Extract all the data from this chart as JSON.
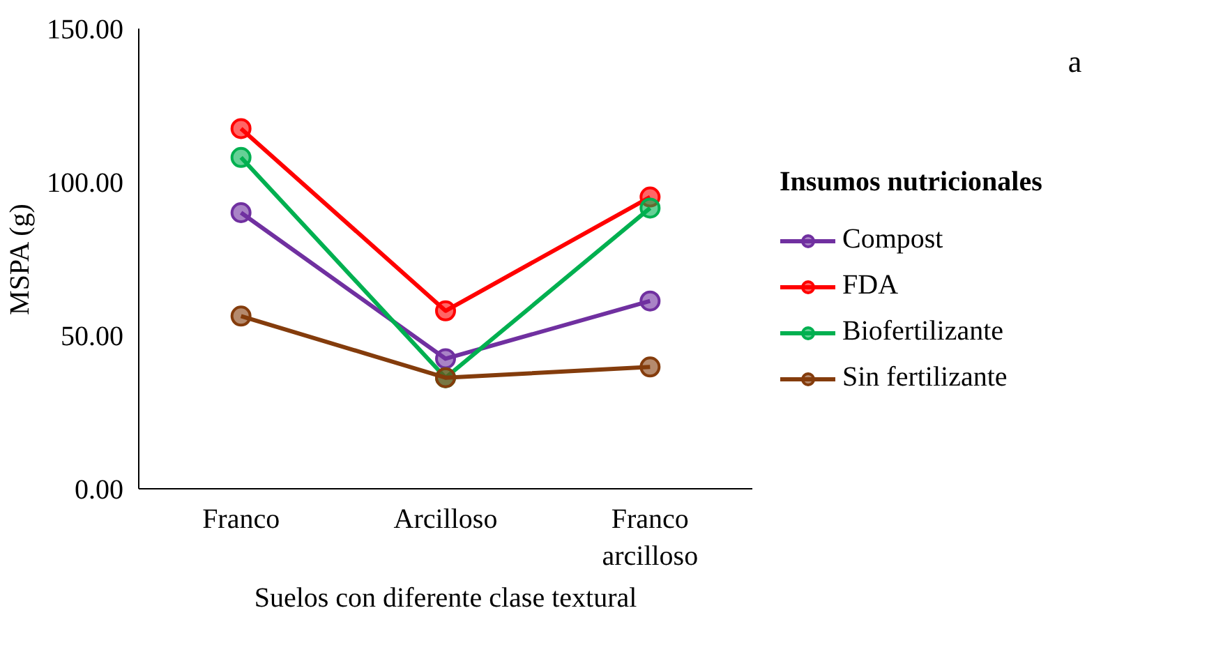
{
  "chart_data": {
    "type": "line",
    "xlabel": "Suelos con diferente clase textural",
    "ylabel": "MSPA (g)",
    "legend_title": "Insumos nutricionales",
    "annotations": [
      "a"
    ],
    "categories": [
      "Franco",
      "Arcilloso",
      "Franco arcilloso"
    ],
    "series": [
      {
        "name": "Compost",
        "color": "#7030a0",
        "values": [
          90,
          42.4,
          61.2
        ]
      },
      {
        "name": "FDA",
        "color": "#ff0000",
        "values": [
          117.4,
          58,
          95.1
        ]
      },
      {
        "name": "Biofertilizante",
        "color": "#00b050",
        "values": [
          108,
          36.2,
          91.5
        ]
      },
      {
        "name": "Sin fertilizante",
        "color": "#843c0c",
        "values": [
          56.3,
          36.2,
          39.7
        ]
      }
    ],
    "ylim": [
      0,
      150
    ],
    "yticks": [
      {
        "value": 0,
        "label": "0.00"
      },
      {
        "value": 50,
        "label": "50.00"
      },
      {
        "value": 100,
        "label": "100.00"
      },
      {
        "value": 150,
        "label": "150.00"
      }
    ],
    "grid": false,
    "legend": "right",
    "marker": "circle",
    "line_style": "solid"
  }
}
